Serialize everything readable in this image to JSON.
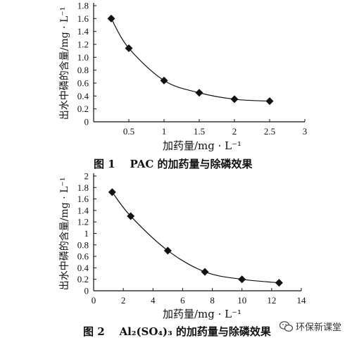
{
  "chart_data": [
    {
      "type": "line",
      "caption": "图 1    PAC 的加药量与除磷效果",
      "xlabel": "加药量/mg · L⁻¹",
      "ylabel": "出水中磷的含量/mg · L⁻¹",
      "xlim": [
        0,
        3
      ],
      "ylim": [
        0,
        1.8
      ],
      "xticks": [
        "0.5",
        "1",
        "1.5",
        "2",
        "2.5",
        "3"
      ],
      "yticks": [
        "0",
        "0.2",
        "0.4",
        "0.6",
        "0.8",
        "1.0",
        "1.2",
        "1.4",
        "1.6",
        "1.8"
      ],
      "x": [
        0.25,
        0.5,
        1.0,
        1.5,
        2.0,
        2.5
      ],
      "y": [
        1.6,
        1.14,
        0.64,
        0.45,
        0.35,
        0.32
      ],
      "marker": "diamond",
      "grid": false
    },
    {
      "type": "line",
      "caption": "图 2    Al₂(SO₄)₃ 的加药量与除磷效果",
      "xlabel": "加药量/mg · L⁻¹",
      "ylabel": "出水中磷的含量/mg · L⁻¹",
      "xlim": [
        0,
        14
      ],
      "ylim": [
        0,
        2
      ],
      "xticks": [
        "0",
        "2",
        "4",
        "6",
        "8",
        "10",
        "12",
        "14"
      ],
      "yticks": [
        "0",
        "0.2",
        "0.4",
        "0.6",
        "0.8",
        "1",
        "1.2",
        "1.4",
        "1.6",
        "1.8",
        "2"
      ],
      "x": [
        1.25,
        2.5,
        5.0,
        7.5,
        10.0,
        12.5
      ],
      "y": [
        1.72,
        1.3,
        0.7,
        0.33,
        0.2,
        0.14
      ],
      "marker": "diamond",
      "grid": false
    }
  ],
  "watermark": {
    "icon": "wechat-icon",
    "text": "环保新课堂"
  }
}
